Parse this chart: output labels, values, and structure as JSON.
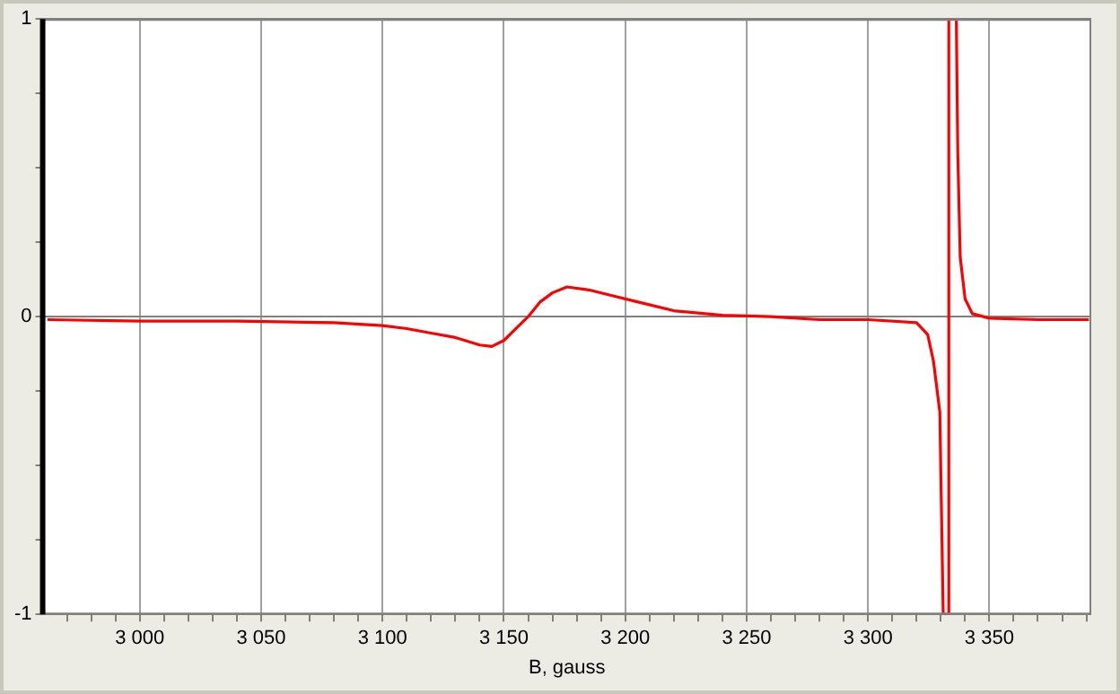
{
  "chart_data": {
    "type": "line",
    "xlabel": "B, gauss",
    "xlim": [
      2960,
      3392
    ],
    "xticks": [
      {
        "value": 2970,
        "label": null
      },
      {
        "value": 2980,
        "label": null
      },
      {
        "value": 2990,
        "label": null
      },
      {
        "value": 3000,
        "label": "3 000"
      },
      {
        "value": 3010,
        "label": null
      },
      {
        "value": 3020,
        "label": null
      },
      {
        "value": 3030,
        "label": null
      },
      {
        "value": 3040,
        "label": null
      },
      {
        "value": 3050,
        "label": "3 050"
      },
      {
        "value": 3060,
        "label": null
      },
      {
        "value": 3070,
        "label": null
      },
      {
        "value": 3080,
        "label": null
      },
      {
        "value": 3090,
        "label": null
      },
      {
        "value": 3100,
        "label": "3 100"
      },
      {
        "value": 3110,
        "label": null
      },
      {
        "value": 3120,
        "label": null
      },
      {
        "value": 3130,
        "label": null
      },
      {
        "value": 3140,
        "label": null
      },
      {
        "value": 3150,
        "label": "3 150"
      },
      {
        "value": 3160,
        "label": null
      },
      {
        "value": 3170,
        "label": null
      },
      {
        "value": 3180,
        "label": null
      },
      {
        "value": 3190,
        "label": null
      },
      {
        "value": 3200,
        "label": "3 200"
      },
      {
        "value": 3210,
        "label": null
      },
      {
        "value": 3220,
        "label": null
      },
      {
        "value": 3230,
        "label": null
      },
      {
        "value": 3240,
        "label": null
      },
      {
        "value": 3250,
        "label": "3 250"
      },
      {
        "value": 3260,
        "label": null
      },
      {
        "value": 3270,
        "label": null
      },
      {
        "value": 3280,
        "label": null
      },
      {
        "value": 3290,
        "label": null
      },
      {
        "value": 3300,
        "label": "3 300"
      },
      {
        "value": 3310,
        "label": null
      },
      {
        "value": 3320,
        "label": null
      },
      {
        "value": 3330,
        "label": null
      },
      {
        "value": 3340,
        "label": null
      },
      {
        "value": 3350,
        "label": "3 350"
      },
      {
        "value": 3360,
        "label": null
      },
      {
        "value": 3370,
        "label": null
      },
      {
        "value": 3380,
        "label": null
      },
      {
        "value": 3390,
        "label": null
      }
    ],
    "ylim": [
      -1,
      1
    ],
    "yticks": [
      -1,
      {
        "value": -0.75,
        "label": null
      },
      {
        "value": -0.5,
        "label": null
      },
      {
        "value": -0.25,
        "label": null
      },
      0,
      {
        "value": 0.25,
        "label": null
      },
      {
        "value": 0.5,
        "label": null
      },
      {
        "value": 0.75,
        "label": null
      },
      1
    ],
    "grid": true,
    "legend": false,
    "marker": "none",
    "line_style": "solid",
    "series": [
      {
        "color": "#ff0000",
        "x": [
          2962,
          3000,
          3040,
          3080,
          3100,
          3110,
          3120,
          3130,
          3140,
          3145,
          3150,
          3155,
          3160,
          3165,
          3170,
          3176,
          3185,
          3195,
          3205,
          3220,
          3240,
          3260,
          3280,
          3300,
          3320,
          3324.6,
          3327,
          3329.6,
          3331,
          3333.3,
          3333.3,
          3336.4,
          3337,
          3338,
          3340,
          3343,
          3350,
          3370,
          3391
        ],
        "values": [
          -0.01,
          -0.015,
          -0.015,
          -0.02,
          -0.03,
          -0.04,
          -0.055,
          -0.07,
          -0.095,
          -0.1,
          -0.08,
          -0.04,
          0,
          0.05,
          0.08,
          0.1,
          0.09,
          0.07,
          0.05,
          0.02,
          0.005,
          0,
          -0.01,
          -0.01,
          -0.02,
          -0.06,
          -0.15,
          -0.32,
          -1,
          -1,
          1,
          1,
          0.55,
          0.2,
          0.06,
          0.01,
          -0.005,
          -0.01,
          -0.01
        ]
      }
    ]
  }
}
